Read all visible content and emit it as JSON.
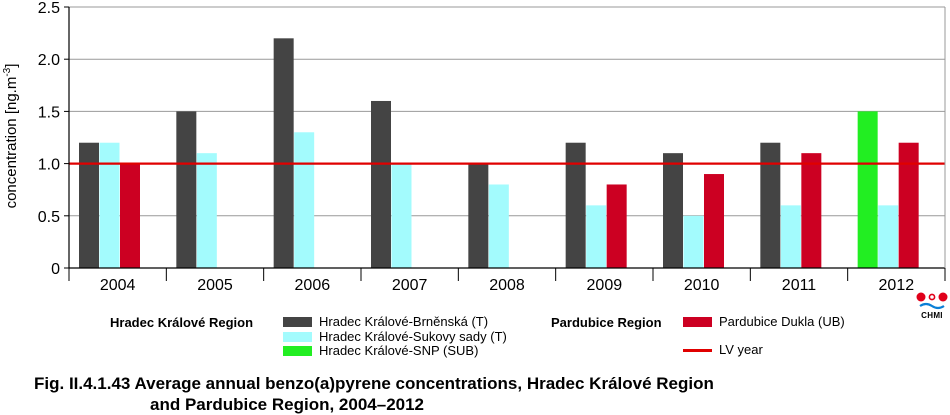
{
  "chart_data": {
    "type": "bar",
    "categories": [
      "2004",
      "2005",
      "2006",
      "2007",
      "2008",
      "2009",
      "2010",
      "2011",
      "2012"
    ],
    "ylabel": "concentration [ng.m-3]",
    "ylabel_main": "concentration [ng.m",
    "ylabel_sup": "-3",
    "ylabel_end": "]",
    "ylim": [
      0,
      2.5
    ],
    "yticks": [
      "0",
      "0.5",
      "1.0",
      "1.5",
      "2.0",
      "2.5"
    ],
    "grid": "horizontal",
    "series": [
      {
        "name": "Hradec Králové-Brněnská (T)",
        "color": "#444444",
        "values": [
          1.2,
          1.5,
          2.2,
          1.6,
          1.0,
          1.2,
          1.1,
          1.2,
          null
        ]
      },
      {
        "name": "Hradec Králové-Sukovy sady (T)",
        "color": "#a3fbfd",
        "values": [
          1.2,
          1.1,
          1.3,
          1.0,
          0.8,
          0.6,
          0.5,
          0.6,
          0.6
        ]
      },
      {
        "name": "Hradec Králové-SNP (SUB)",
        "color": "#22ee22",
        "values": [
          null,
          null,
          null,
          null,
          null,
          null,
          null,
          null,
          1.5
        ]
      },
      {
        "name": "Pardubice Dukla (UB)",
        "color": "#cc0022",
        "values": [
          1.0,
          null,
          null,
          null,
          null,
          0.8,
          0.9,
          1.1,
          1.2
        ]
      }
    ],
    "limit_line": {
      "name": "LV year",
      "value": 1.0,
      "color": "#e00000"
    }
  },
  "legend": {
    "group1_title": "Hradec Králové Region",
    "group2_title": "Pardubice Region"
  },
  "logo": {
    "text": "CHMI"
  },
  "caption": {
    "line1": "Fig. II.4.1.43  Average annual benzo(a)pyrene concentrations, Hradec Králové Region",
    "line2": "and Pardubice Region, 2004–2012"
  }
}
